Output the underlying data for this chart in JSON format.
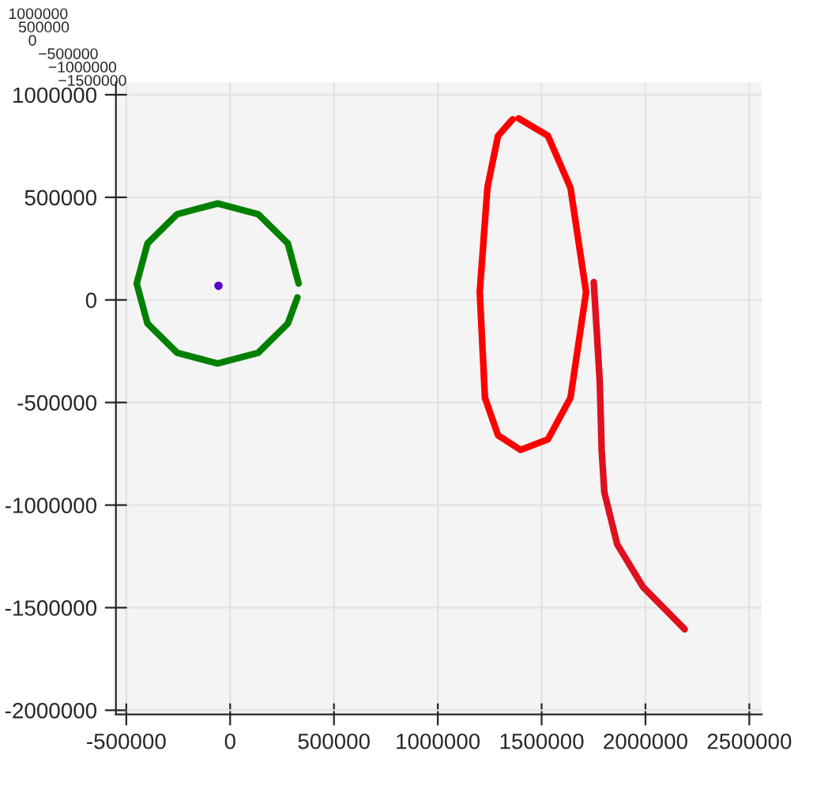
{
  "chart_data": {
    "type": "line",
    "series": [
      {
        "color": "#008000",
        "x": [
          330000,
          278000,
          135000,
          -60000,
          -255000,
          -398000,
          -450000,
          -398000,
          -255000,
          -60000,
          135000,
          278000,
          324000
        ],
        "values": [
          80000,
          275000,
          418000,
          470000,
          418000,
          275000,
          80000,
          -115000,
          -258000,
          -310000,
          -258000,
          -115000,
          12000
        ]
      },
      {
        "type": "scatter",
        "marker": "circle",
        "color": "#5a00c8",
        "x": [
          -56000
        ],
        "values": [
          69000
        ]
      },
      {
        "color": "#ff0000",
        "x": [
          1389000,
          1530000,
          1639000,
          1714000,
          1639000,
          1530000,
          1399000,
          1290000,
          1227000,
          1202000,
          1239000,
          1290000,
          1360000
        ],
        "values": [
          885000,
          800000,
          546000,
          38000,
          -477000,
          -680000,
          -731000,
          -660000,
          -477000,
          38000,
          548000,
          800000,
          880000
        ]
      },
      {
        "color": "#e0101e",
        "x": [
          1751000,
          1780000,
          1789000,
          1802000,
          1864000,
          1989000,
          2189000
        ],
        "values": [
          87000,
          -400000,
          -731000,
          -938000,
          -1192000,
          -1400000,
          -1605000
        ]
      }
    ],
    "xlim": [
      -550000,
      2560000
    ],
    "ylim": [
      -2020000,
      1060000
    ],
    "xticks": [
      -500000,
      0,
      500000,
      1000000,
      1500000,
      2000000,
      2500000
    ],
    "yticks": [
      -2000000,
      -1500000,
      -1000000,
      -500000,
      0,
      500000,
      1000000
    ],
    "grid": true,
    "marker": "none",
    "annotations": [
      "1000000",
      "500000",
      "0",
      "−500000",
      "−1000000",
      "−1500000"
    ]
  }
}
